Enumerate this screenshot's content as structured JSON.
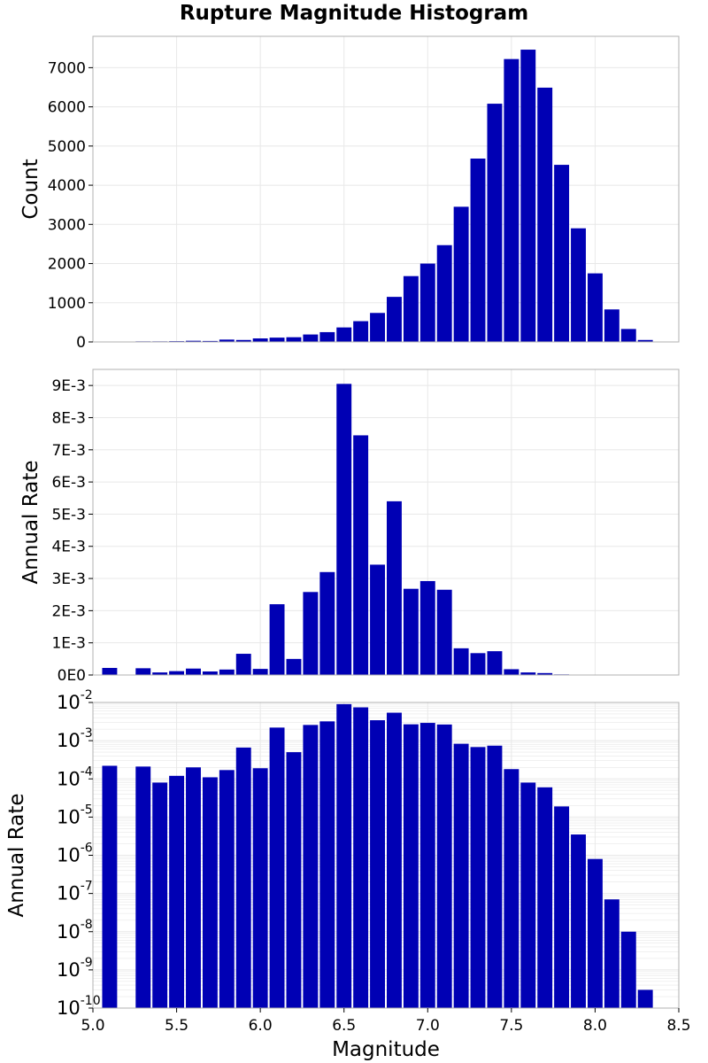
{
  "title": "Rupture Magnitude Histogram",
  "colors": {
    "bar": "#0000b4",
    "grid": "#e8e8e8",
    "frame": "#b0b0b0"
  },
  "chart_data": [
    {
      "type": "bar",
      "ylabel": "Count",
      "xlim": [
        5.0,
        8.5
      ],
      "ylim": [
        0,
        7800
      ],
      "yticks": [
        "0",
        "1000",
        "2000",
        "3000",
        "4000",
        "5000",
        "6000",
        "7000"
      ],
      "bin_width": 0.1,
      "x": [
        5.1,
        5.2,
        5.3,
        5.4,
        5.5,
        5.6,
        5.7,
        5.8,
        5.9,
        6.0,
        6.1,
        6.2,
        6.3,
        6.4,
        6.5,
        6.6,
        6.7,
        6.8,
        6.9,
        7.0,
        7.1,
        7.2,
        7.3,
        7.4,
        7.5,
        7.6,
        7.7,
        7.8,
        7.9,
        8.0,
        8.1,
        8.2,
        8.3,
        8.4
      ],
      "values": [
        8,
        0,
        15,
        15,
        20,
        30,
        25,
        60,
        50,
        90,
        110,
        120,
        190,
        250,
        370,
        530,
        740,
        1150,
        1680,
        2000,
        2470,
        3450,
        4680,
        6080,
        7220,
        7460,
        6490,
        4520,
        2900,
        1750,
        830,
        330,
        50,
        0
      ]
    },
    {
      "type": "bar",
      "ylabel": "Annual Rate",
      "xlim": [
        5.0,
        8.5
      ],
      "ylim": [
        0,
        0.0095
      ],
      "yticks": [
        "0E0",
        "1E-3",
        "2E-3",
        "3E-3",
        "4E-3",
        "5E-3",
        "6E-3",
        "7E-3",
        "8E-3",
        "9E-3"
      ],
      "bin_width": 0.1,
      "x": [
        5.1,
        5.2,
        5.3,
        5.4,
        5.5,
        5.6,
        5.7,
        5.8,
        5.9,
        6.0,
        6.1,
        6.2,
        6.3,
        6.4,
        6.5,
        6.6,
        6.7,
        6.8,
        6.9,
        7.0,
        7.1,
        7.2,
        7.3,
        7.4,
        7.5,
        7.6,
        7.7,
        7.8,
        7.9,
        8.0,
        8.1,
        8.2,
        8.3,
        8.4
      ],
      "values": [
        0.00022,
        0,
        0.00021,
        8e-05,
        0.00012,
        0.0002,
        0.00011,
        0.00017,
        0.00066,
        0.00019,
        0.0022,
        0.0005,
        0.00258,
        0.0032,
        0.00905,
        0.00745,
        0.00343,
        0.0054,
        0.00268,
        0.00292,
        0.00265,
        0.00083,
        0.00068,
        0.00074,
        0.00018,
        8e-05,
        6e-05,
        1.9e-05,
        3.5e-06,
        8e-07,
        7e-08,
        1e-08,
        3e-10,
        0
      ]
    },
    {
      "type": "bar",
      "ylabel": "Annual Rate",
      "xlabel": "Magnitude",
      "yscale": "log",
      "xlim": [
        5.0,
        8.5
      ],
      "ylim": [
        1e-10,
        0.01
      ],
      "ytick_base": "10",
      "ytick_exponents": [
        "-10",
        "-9",
        "-8",
        "-7",
        "-6",
        "-5",
        "-4",
        "-3",
        "-2"
      ],
      "xticks": [
        "5.0",
        "5.5",
        "6.0",
        "6.5",
        "7.0",
        "7.5",
        "8.0",
        "8.5"
      ],
      "bin_width": 0.1,
      "x": [
        5.1,
        5.2,
        5.3,
        5.4,
        5.5,
        5.6,
        5.7,
        5.8,
        5.9,
        6.0,
        6.1,
        6.2,
        6.3,
        6.4,
        6.5,
        6.6,
        6.7,
        6.8,
        6.9,
        7.0,
        7.1,
        7.2,
        7.3,
        7.4,
        7.5,
        7.6,
        7.7,
        7.8,
        7.9,
        8.0,
        8.1,
        8.2,
        8.3,
        8.4
      ],
      "values": [
        0.00022,
        0,
        0.00021,
        8e-05,
        0.00012,
        0.0002,
        0.00011,
        0.00017,
        0.00066,
        0.00019,
        0.0022,
        0.0005,
        0.00258,
        0.0032,
        0.00905,
        0.00745,
        0.00343,
        0.0054,
        0.00268,
        0.00292,
        0.00265,
        0.00083,
        0.00068,
        0.00074,
        0.00018,
        8e-05,
        6e-05,
        1.9e-05,
        3.5e-06,
        8e-07,
        7e-08,
        1e-08,
        3e-10,
        0
      ]
    }
  ]
}
